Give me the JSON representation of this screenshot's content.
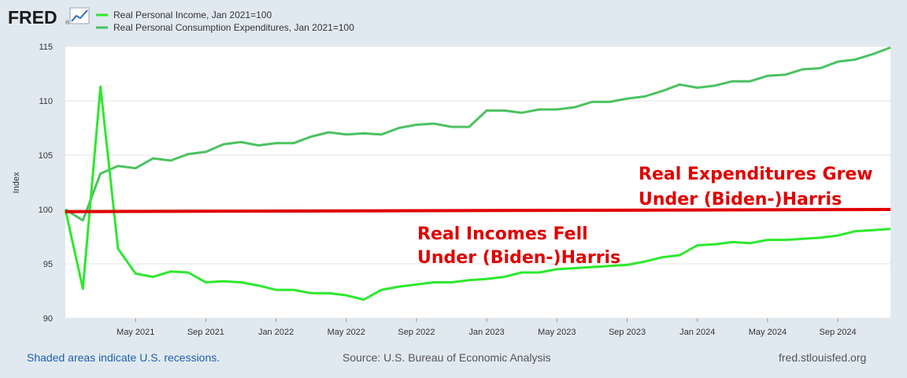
{
  "header": {
    "logo_text": "FRED",
    "logo_registered": "®",
    "logo_icon": "chart-line-icon"
  },
  "colors": {
    "background": "#e1e9f0",
    "plot_background": "#ffffff",
    "income_line": "#2ee82e",
    "consumption_line": "#4cc261",
    "annotation": "#e00000"
  },
  "chart_data": {
    "type": "line",
    "title": "",
    "xlabel": "",
    "ylabel": "Index",
    "ylim": [
      90,
      115
    ],
    "xlim": [
      "2021-01",
      "2024-12"
    ],
    "yticks": [
      90,
      95,
      100,
      105,
      110,
      115
    ],
    "xticks": [
      {
        "label": "May 2021",
        "date": "2021-05"
      },
      {
        "label": "Sep 2021",
        "date": "2021-09"
      },
      {
        "label": "Jan 2022",
        "date": "2022-01"
      },
      {
        "label": "May 2022",
        "date": "2022-05"
      },
      {
        "label": "Sep 2022",
        "date": "2022-09"
      },
      {
        "label": "Jan 2023",
        "date": "2023-01"
      },
      {
        "label": "May 2023",
        "date": "2023-05"
      },
      {
        "label": "Sep 2023",
        "date": "2023-09"
      },
      {
        "label": "Jan 2024",
        "date": "2024-01"
      },
      {
        "label": "May 2024",
        "date": "2024-05"
      },
      {
        "label": "Sep 2024",
        "date": "2024-09"
      }
    ],
    "grid": true,
    "legend_position": "top-left",
    "x": [
      "2021-01",
      "2021-02",
      "2021-03",
      "2021-04",
      "2021-05",
      "2021-06",
      "2021-07",
      "2021-08",
      "2021-09",
      "2021-10",
      "2021-11",
      "2021-12",
      "2022-01",
      "2022-02",
      "2022-03",
      "2022-04",
      "2022-05",
      "2022-06",
      "2022-07",
      "2022-08",
      "2022-09",
      "2022-10",
      "2022-11",
      "2022-12",
      "2023-01",
      "2023-02",
      "2023-03",
      "2023-04",
      "2023-05",
      "2023-06",
      "2023-07",
      "2023-08",
      "2023-09",
      "2023-10",
      "2023-11",
      "2023-12",
      "2024-01",
      "2024-02",
      "2024-03",
      "2024-04",
      "2024-05",
      "2024-06",
      "2024-07",
      "2024-08",
      "2024-09",
      "2024-10",
      "2024-11",
      "2024-12"
    ],
    "series": [
      {
        "name": "Real Personal Income, Jan 2021=100",
        "color": "#2ee82e",
        "values": [
          100.0,
          92.7,
          111.3,
          96.4,
          94.1,
          93.8,
          94.3,
          94.2,
          93.3,
          93.4,
          93.3,
          93.0,
          92.6,
          92.6,
          92.3,
          92.3,
          92.1,
          91.7,
          92.6,
          92.9,
          93.1,
          93.3,
          93.3,
          93.5,
          93.6,
          93.8,
          94.2,
          94.2,
          94.5,
          94.6,
          94.7,
          94.8,
          94.9,
          95.2,
          95.6,
          95.8,
          96.7,
          96.8,
          97.0,
          96.9,
          97.2,
          97.2,
          97.3,
          97.4,
          97.6,
          98.0,
          98.1,
          98.2
        ]
      },
      {
        "name": "Real Personal Consumption Expenditures, Jan 2021=100",
        "color": "#4cc261",
        "values": [
          100.0,
          99.0,
          103.3,
          104.0,
          103.8,
          104.7,
          104.5,
          105.1,
          105.3,
          106.0,
          106.2,
          105.9,
          106.1,
          106.1,
          106.7,
          107.1,
          106.9,
          107.0,
          106.9,
          107.5,
          107.8,
          107.9,
          107.6,
          107.6,
          109.1,
          109.1,
          108.9,
          109.2,
          109.2,
          109.4,
          109.9,
          109.9,
          110.2,
          110.4,
          110.9,
          111.5,
          111.2,
          111.4,
          111.8,
          111.8,
          112.3,
          112.4,
          112.9,
          113.0,
          113.6,
          113.8,
          114.3,
          114.9
        ]
      }
    ],
    "reference_line": {
      "color": "#e00000",
      "y_start": 99.8,
      "y_end": 100.0
    },
    "annotations": [
      {
        "lines": [
          "Real Expenditures Grew",
          "Under (Biden-)Harris"
        ]
      },
      {
        "lines": [
          "Real Incomes Fell",
          "Under (Biden-)Harris"
        ]
      }
    ]
  },
  "footer": {
    "recession_note": "Shaded areas indicate U.S. recessions.",
    "source": "Source: U.S. Bureau of Economic Analysis",
    "site": "fred.stlouisfed.org"
  }
}
